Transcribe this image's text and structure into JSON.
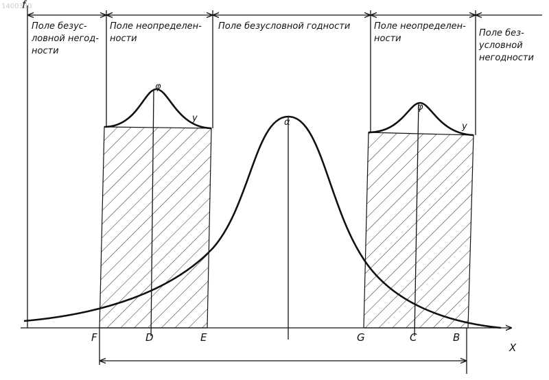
{
  "stamp": "1400330",
  "axes": {
    "y": "f",
    "x": "X"
  },
  "regions": [
    {
      "lines": [
        "Поле безус-",
        "ловной негод-",
        "ности"
      ]
    },
    {
      "lines": [
        "Поле неопределен-",
        "ности"
      ]
    },
    {
      "lines": [
        "Поле безусловной годности"
      ]
    },
    {
      "lines": [
        "Поле неопределен-",
        "ности"
      ]
    },
    {
      "lines": [
        "Поле без-",
        "условной",
        "негодности"
      ]
    }
  ],
  "points": [
    "F",
    "D",
    "E",
    "G",
    "C",
    "B"
  ],
  "curve_labels": [
    "φ",
    "y",
    "α",
    "φ",
    "y"
  ]
}
